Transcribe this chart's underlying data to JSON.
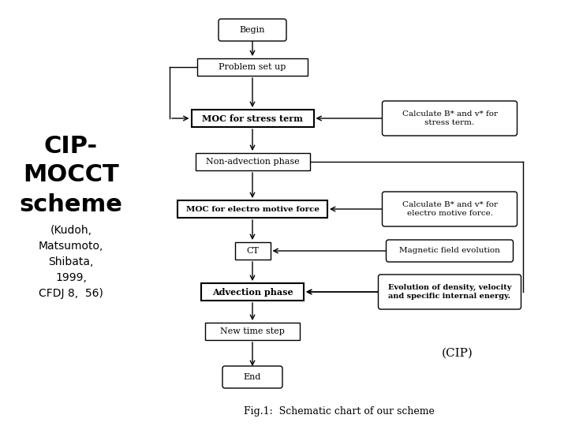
{
  "bg_color": "#ffffff",
  "title_lines": [
    "CIP-",
    "MOCCT",
    "scheme"
  ],
  "subtitle_lines": [
    "(Kudoh,",
    "Matsumoto,",
    "Shibata,",
    "1999,",
    "CFDJ 8,  56)"
  ],
  "caption": "Fig.1:  Schematic chart of our scheme",
  "cip_label": "(CIP)"
}
